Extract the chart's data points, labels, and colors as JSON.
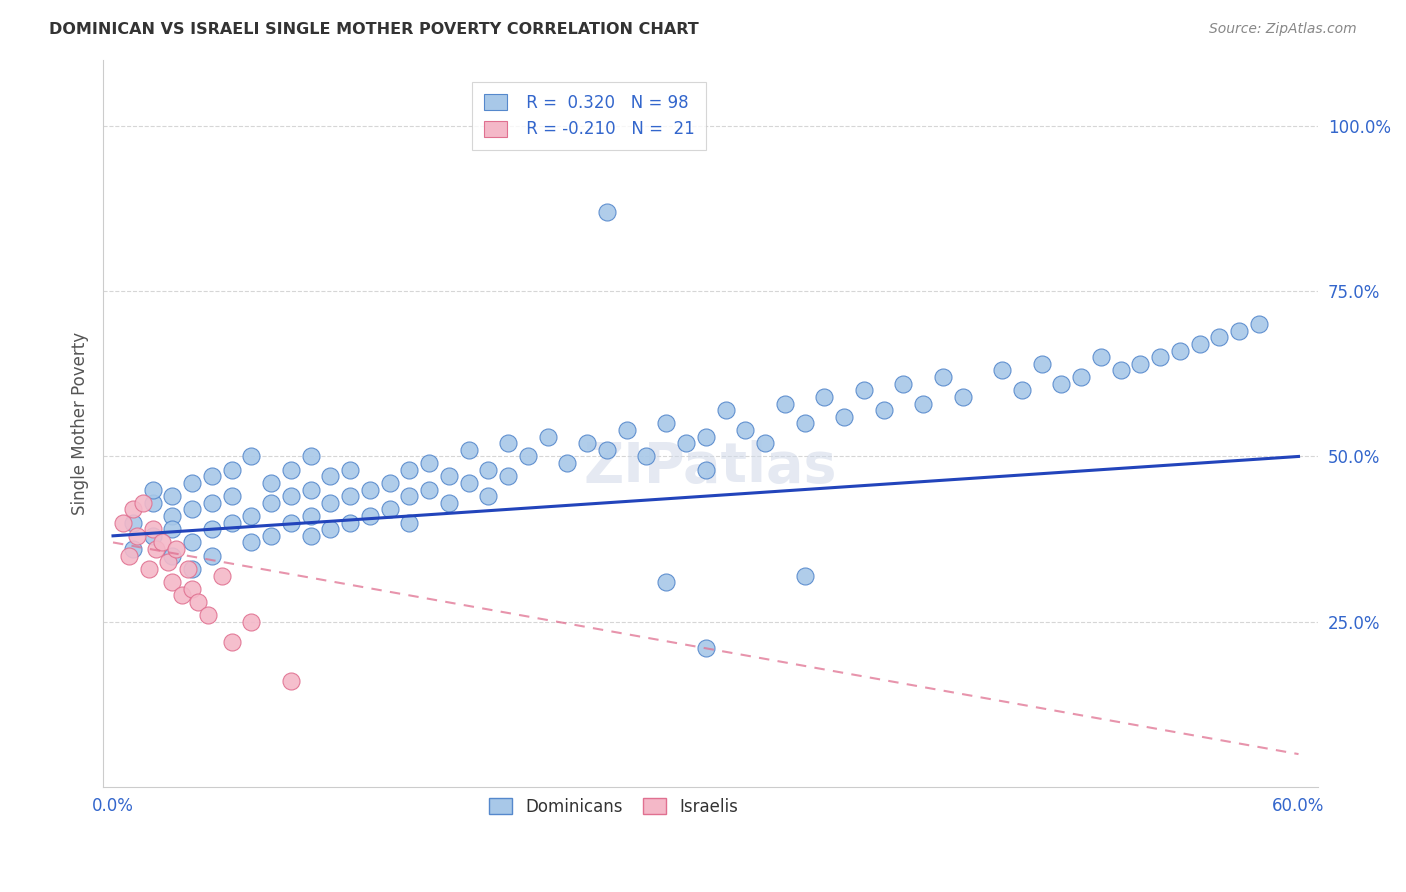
{
  "title": "DOMINICAN VS ISRAELI SINGLE MOTHER POVERTY CORRELATION CHART",
  "source": "Source: ZipAtlas.com",
  "ylabel": "Single Mother Poverty",
  "ytick_labels": [
    "25.0%",
    "50.0%",
    "75.0%",
    "100.0%"
  ],
  "ytick_values": [
    0.25,
    0.5,
    0.75,
    1.0
  ],
  "xlim": [
    0.0,
    0.6
  ],
  "ylim": [
    0.0,
    1.1
  ],
  "dominican_color": "#a8c8e8",
  "dominican_edge": "#5588cc",
  "israeli_color": "#f4b8c8",
  "israeli_edge": "#e07090",
  "trend_dominican_color": "#2244bb",
  "trend_israeli_color": "#e07090",
  "watermark": "ZIPatlas",
  "dom_trend_x0": 0.0,
  "dom_trend_y0": 0.38,
  "dom_trend_x1": 0.6,
  "dom_trend_y1": 0.5,
  "isr_trend_x0": 0.0,
  "isr_trend_y0": 0.37,
  "isr_trend_x1": 0.6,
  "isr_trend_y1": 0.05,
  "dominican_pts_x": [
    0.01,
    0.01,
    0.02,
    0.02,
    0.02,
    0.03,
    0.03,
    0.03,
    0.03,
    0.04,
    0.04,
    0.04,
    0.04,
    0.05,
    0.05,
    0.05,
    0.05,
    0.06,
    0.06,
    0.06,
    0.07,
    0.07,
    0.07,
    0.08,
    0.08,
    0.08,
    0.09,
    0.09,
    0.09,
    0.1,
    0.1,
    0.1,
    0.1,
    0.11,
    0.11,
    0.11,
    0.12,
    0.12,
    0.12,
    0.13,
    0.13,
    0.14,
    0.14,
    0.15,
    0.15,
    0.15,
    0.16,
    0.16,
    0.17,
    0.17,
    0.18,
    0.18,
    0.19,
    0.19,
    0.2,
    0.2,
    0.21,
    0.22,
    0.23,
    0.24,
    0.25,
    0.26,
    0.27,
    0.28,
    0.29,
    0.3,
    0.3,
    0.31,
    0.32,
    0.33,
    0.34,
    0.35,
    0.36,
    0.37,
    0.38,
    0.39,
    0.4,
    0.41,
    0.42,
    0.43,
    0.45,
    0.46,
    0.47,
    0.48,
    0.49,
    0.5,
    0.51,
    0.52,
    0.53,
    0.54,
    0.55,
    0.56,
    0.57,
    0.58,
    0.25,
    0.28,
    0.3,
    0.35
  ],
  "dominican_pts_y": [
    0.4,
    0.36,
    0.43,
    0.38,
    0.45,
    0.41,
    0.35,
    0.44,
    0.39,
    0.42,
    0.37,
    0.46,
    0.33,
    0.43,
    0.39,
    0.47,
    0.35,
    0.44,
    0.4,
    0.48,
    0.41,
    0.37,
    0.5,
    0.43,
    0.38,
    0.46,
    0.44,
    0.4,
    0.48,
    0.45,
    0.41,
    0.38,
    0.5,
    0.43,
    0.47,
    0.39,
    0.44,
    0.48,
    0.4,
    0.45,
    0.41,
    0.46,
    0.42,
    0.48,
    0.44,
    0.4,
    0.49,
    0.45,
    0.47,
    0.43,
    0.51,
    0.46,
    0.48,
    0.44,
    0.52,
    0.47,
    0.5,
    0.53,
    0.49,
    0.52,
    0.51,
    0.54,
    0.5,
    0.55,
    0.52,
    0.53,
    0.48,
    0.57,
    0.54,
    0.52,
    0.58,
    0.55,
    0.59,
    0.56,
    0.6,
    0.57,
    0.61,
    0.58,
    0.62,
    0.59,
    0.63,
    0.6,
    0.64,
    0.61,
    0.62,
    0.65,
    0.63,
    0.64,
    0.65,
    0.66,
    0.67,
    0.68,
    0.69,
    0.7,
    0.87,
    0.31,
    0.21,
    0.32
  ],
  "israeli_pts_x": [
    0.005,
    0.008,
    0.01,
    0.012,
    0.015,
    0.018,
    0.02,
    0.022,
    0.025,
    0.028,
    0.03,
    0.032,
    0.035,
    0.038,
    0.04,
    0.043,
    0.048,
    0.055,
    0.06,
    0.07,
    0.09
  ],
  "israeli_pts_y": [
    0.4,
    0.35,
    0.42,
    0.38,
    0.43,
    0.33,
    0.39,
    0.36,
    0.37,
    0.34,
    0.31,
    0.36,
    0.29,
    0.33,
    0.3,
    0.28,
    0.26,
    0.32,
    0.22,
    0.25,
    0.16
  ]
}
